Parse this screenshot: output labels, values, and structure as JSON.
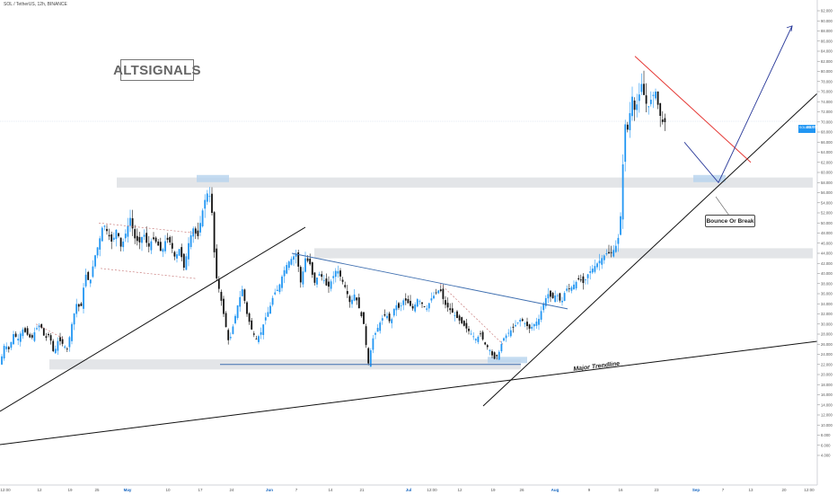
{
  "header": {
    "symbol_line": "SOL / TetherUS, 12h, BINANCE"
  },
  "logo": {
    "text": "ALTSIGNALS"
  },
  "annotations": {
    "bounce_label": "Bounce Or Break",
    "trendline_label": "Major Trendline"
  },
  "last_price": {
    "symbol": "SOLUSDT",
    "value": "69.950"
  },
  "colors": {
    "candle_up": "#2196f3",
    "candle_down": "#111111",
    "zone_fill": "#e3e5e8",
    "zone_highlight": "#b7d3ee",
    "resistance_line": "#e53935",
    "projection_arrow": "#2a3a9a",
    "triangle_line": "#3f6fb0",
    "trendline": "#111111"
  },
  "chart_data": {
    "type": "candlestick",
    "y_axis": {
      "range": [
        3,
        94
      ],
      "tick_labels": [
        "4.000",
        "6.000",
        "8.000",
        "10.000",
        "12.000",
        "14.000",
        "16.000",
        "18.000",
        "20.000",
        "22.000",
        "24.000",
        "26.000",
        "28.000",
        "30.000",
        "32.000",
        "34.000",
        "36.000",
        "38.000",
        "40.000",
        "42.000",
        "44.000",
        "46.000",
        "48.000",
        "50.000",
        "52.000",
        "54.000",
        "56.000",
        "58.000",
        "60.000",
        "62.000",
        "64.000",
        "66.000",
        "68.000",
        "70.000",
        "72.000",
        "74.000",
        "76.000",
        "78.000",
        "80.000",
        "82.000",
        "84.000",
        "86.000",
        "88.000",
        "90.000",
        "92.000"
      ]
    },
    "x_axis": {
      "tick_labels": [
        "12:00",
        "12",
        "19",
        "25",
        "May",
        "10",
        "17",
        "24",
        "Jun",
        "7",
        "14",
        "21",
        "Jul",
        "12:00",
        "12",
        "19",
        "26",
        "Aug",
        "9",
        "16",
        "23",
        "Sep",
        "7",
        "13",
        "20",
        "12:00"
      ]
    },
    "price_path": [
      [
        0,
        22
      ],
      [
        5,
        26
      ],
      [
        10,
        25
      ],
      [
        15,
        28
      ],
      [
        20,
        27
      ],
      [
        25,
        29
      ],
      [
        30,
        28
      ],
      [
        35,
        27
      ],
      [
        40,
        29
      ],
      [
        45,
        30
      ],
      [
        50,
        27
      ],
      [
        55,
        28
      ],
      [
        60,
        24
      ],
      [
        65,
        27
      ],
      [
        70,
        26
      ],
      [
        75,
        25
      ],
      [
        80,
        30
      ],
      [
        85,
        34
      ],
      [
        90,
        33
      ],
      [
        95,
        40
      ],
      [
        100,
        38
      ],
      [
        105,
        43
      ],
      [
        110,
        46
      ],
      [
        115,
        50
      ],
      [
        120,
        48
      ],
      [
        125,
        46
      ],
      [
        130,
        49
      ],
      [
        135,
        45
      ],
      [
        140,
        48
      ],
      [
        145,
        51
      ],
      [
        150,
        47
      ],
      [
        155,
        46
      ],
      [
        160,
        48
      ],
      [
        165,
        45
      ],
      [
        170,
        47
      ],
      [
        175,
        46
      ],
      [
        180,
        44
      ],
      [
        185,
        47
      ],
      [
        190,
        46
      ],
      [
        195,
        43
      ],
      [
        200,
        45
      ],
      [
        205,
        41
      ],
      [
        210,
        46
      ],
      [
        215,
        49
      ],
      [
        220,
        47
      ],
      [
        225,
        52
      ],
      [
        230,
        56
      ],
      [
        235,
        55
      ],
      [
        240,
        40
      ],
      [
        245,
        36
      ],
      [
        250,
        31
      ],
      [
        255,
        26
      ],
      [
        260,
        30
      ],
      [
        265,
        34
      ],
      [
        270,
        37
      ],
      [
        275,
        32
      ],
      [
        280,
        29
      ],
      [
        285,
        27
      ],
      [
        290,
        28
      ],
      [
        295,
        31
      ],
      [
        300,
        33
      ],
      [
        305,
        36
      ],
      [
        310,
        37
      ],
      [
        315,
        40
      ],
      [
        320,
        42
      ],
      [
        325,
        43
      ],
      [
        330,
        44
      ],
      [
        335,
        38
      ],
      [
        340,
        43
      ],
      [
        345,
        42
      ],
      [
        350,
        38
      ],
      [
        355,
        40
      ],
      [
        360,
        39
      ],
      [
        365,
        37
      ],
      [
        370,
        39
      ],
      [
        375,
        41
      ],
      [
        380,
        39
      ],
      [
        385,
        37
      ],
      [
        390,
        34
      ],
      [
        395,
        36
      ],
      [
        400,
        33
      ],
      [
        405,
        30
      ],
      [
        410,
        22
      ],
      [
        415,
        27
      ],
      [
        420,
        29
      ],
      [
        425,
        31
      ],
      [
        430,
        32
      ],
      [
        435,
        30
      ],
      [
        440,
        34
      ],
      [
        445,
        33
      ],
      [
        450,
        35
      ],
      [
        455,
        34
      ],
      [
        460,
        33
      ],
      [
        465,
        35
      ],
      [
        470,
        34
      ],
      [
        475,
        33
      ],
      [
        480,
        35
      ],
      [
        485,
        36
      ],
      [
        490,
        37
      ],
      [
        495,
        34
      ],
      [
        500,
        33
      ],
      [
        505,
        32
      ],
      [
        510,
        31
      ],
      [
        515,
        30
      ],
      [
        520,
        29
      ],
      [
        525,
        28
      ],
      [
        530,
        27
      ],
      [
        535,
        28
      ],
      [
        540,
        26
      ],
      [
        545,
        25
      ],
      [
        550,
        23
      ],
      [
        555,
        24
      ],
      [
        560,
        27
      ],
      [
        565,
        28
      ],
      [
        570,
        29
      ],
      [
        575,
        30
      ],
      [
        580,
        31
      ],
      [
        585,
        30
      ],
      [
        590,
        29
      ],
      [
        595,
        30
      ],
      [
        600,
        31
      ],
      [
        605,
        34
      ],
      [
        610,
        36
      ],
      [
        615,
        35
      ],
      [
        620,
        36
      ],
      [
        625,
        34
      ],
      [
        630,
        37
      ],
      [
        635,
        37
      ],
      [
        640,
        38
      ],
      [
        645,
        39
      ],
      [
        650,
        38
      ],
      [
        655,
        40
      ],
      [
        660,
        41
      ],
      [
        665,
        42
      ],
      [
        670,
        43
      ],
      [
        675,
        44
      ],
      [
        680,
        44
      ],
      [
        685,
        45
      ],
      [
        690,
        48
      ],
      [
        693,
        58
      ],
      [
        695,
        70
      ],
      [
        700,
        68
      ],
      [
        703,
        76
      ],
      [
        707,
        72
      ],
      [
        710,
        74
      ],
      [
        715,
        78
      ],
      [
        718,
        74
      ],
      [
        722,
        73
      ],
      [
        726,
        75
      ],
      [
        730,
        76
      ],
      [
        734,
        72
      ],
      [
        737,
        70
      ],
      [
        741,
        69.95
      ]
    ],
    "support_zones": [
      [
        57,
        59
      ],
      [
        43,
        45
      ],
      [
        21,
        23
      ]
    ],
    "trendlines": [
      {
        "from": [
          0,
          18
        ],
        "to": [
          340,
          51
        ]
      },
      {
        "from": [
          0,
          10
        ],
        "to": [
          910,
          30
        ]
      },
      {
        "from": [
          538,
          19
        ],
        "to": [
          910,
          76
        ]
      },
      {
        "from": [
          325,
          44
        ],
        "to": [
          632,
          33
        ]
      }
    ],
    "horizontal_lines": [
      {
        "y": 22,
        "x0": 245,
        "x1": 580
      }
    ],
    "resistance_line": {
      "from": [
        707,
        83
      ],
      "to": [
        836,
        62
      ]
    },
    "projection": [
      [
        762,
        66
      ],
      [
        800,
        58
      ],
      [
        882,
        89
      ]
    ]
  }
}
